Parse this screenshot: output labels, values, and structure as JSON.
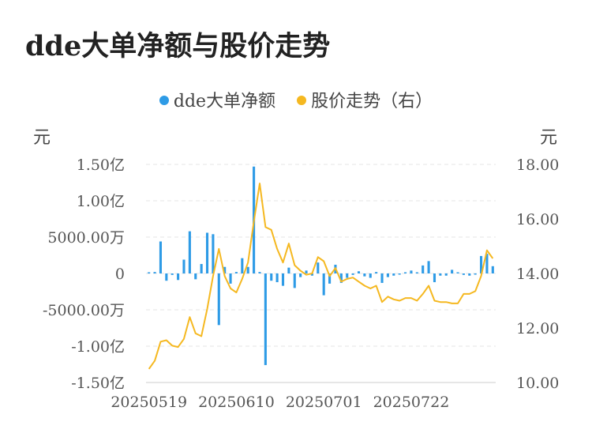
{
  "chart_data": {
    "type": "bar+line",
    "title": "dde大单净额与股价走势",
    "legend": [
      {
        "name": "dde大单净额",
        "color": "#2e9be6"
      },
      {
        "name": "股价走势（右）",
        "color": "#f5b820"
      }
    ],
    "left_unit": "元",
    "right_unit": "元",
    "left_ticks": [
      {
        "value": 150000000.0,
        "label": "1.50亿"
      },
      {
        "value": 100000000.0,
        "label": "1.00亿"
      },
      {
        "value": 50000000.0,
        "label": "5000.00万"
      },
      {
        "value": 0,
        "label": "0"
      },
      {
        "value": -50000000.0,
        "label": "-5000.00万"
      },
      {
        "value": -100000000.0,
        "label": "-1.00亿"
      },
      {
        "value": -150000000.0,
        "label": "-1.50亿"
      }
    ],
    "right_ticks": [
      {
        "value": 18,
        "label": "18.00"
      },
      {
        "value": 16,
        "label": "16.00"
      },
      {
        "value": 14,
        "label": "14.00"
      },
      {
        "value": 12,
        "label": "12.00"
      },
      {
        "value": 10,
        "label": "10.00"
      }
    ],
    "left_range": [
      -150000000.0,
      150000000.0
    ],
    "right_range": [
      10,
      18
    ],
    "x_ticks": [
      {
        "index": 0,
        "label": "20250519"
      },
      {
        "index": 15,
        "label": "20250610"
      },
      {
        "index": 30,
        "label": "20250701"
      },
      {
        "index": 45,
        "label": "20250722"
      }
    ],
    "bars": [
      1000000,
      2000000,
      44000000,
      -10000000,
      -2000000,
      -9000000,
      19000000,
      58000000,
      -8000000,
      13000000,
      56000000,
      54000000,
      -71000000,
      9000000,
      -14000000,
      2000000,
      21000000,
      9000000,
      147000000,
      2000000,
      -126000000,
      -10000000,
      -12000000,
      -17000000,
      8000000,
      -20000000,
      -5000000,
      4000000,
      -3000000,
      15000000,
      -30000000,
      -14000000,
      12000000,
      -13000000,
      -6000000,
      -2000000,
      3000000,
      -4000000,
      -6000000,
      2000000,
      -13000000,
      -5000000,
      -3000000,
      -1000000,
      1000000,
      4000000,
      1000000,
      11000000,
      17000000,
      -12000000,
      -3000000,
      -3000000,
      5000000,
      1000000,
      -2000000,
      -3000000,
      -1000000,
      24000000,
      27000000,
      10000000
    ],
    "price": [
      10.5,
      10.8,
      11.5,
      11.55,
      11.35,
      11.3,
      11.6,
      12.4,
      11.8,
      11.7,
      12.7,
      13.9,
      14.9,
      13.9,
      13.45,
      13.3,
      13.8,
      14.4,
      15.9,
      17.3,
      15.7,
      15.6,
      14.9,
      14.4,
      15.1,
      14.3,
      14.1,
      13.95,
      14.0,
      14.6,
      14.45,
      13.9,
      14.2,
      13.7,
      13.8,
      13.85,
      13.7,
      13.55,
      13.45,
      13.55,
      12.95,
      13.15,
      13.05,
      13.0,
      13.1,
      13.1,
      13.0,
      13.25,
      13.55,
      13.0,
      12.95,
      12.95,
      12.9,
      12.9,
      13.25,
      13.25,
      13.35,
      13.9,
      14.85,
      14.55
    ]
  }
}
